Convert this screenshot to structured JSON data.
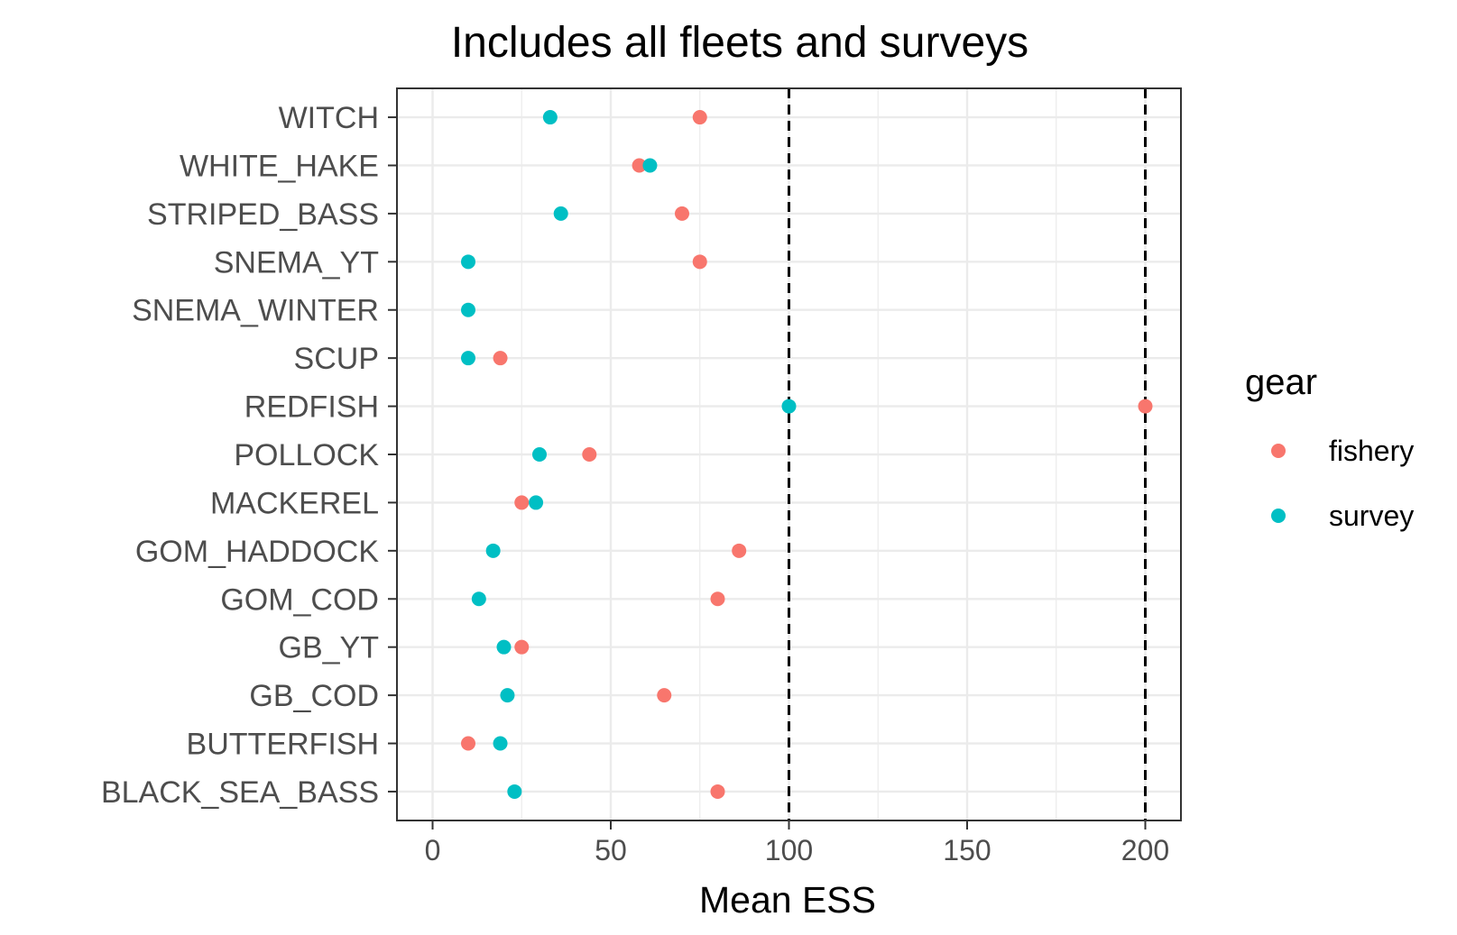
{
  "chart_data": {
    "type": "scatter",
    "title": "Includes all fleets and surveys",
    "xlabel": "Mean ESS",
    "ylabel": "",
    "xlim": [
      -10,
      210
    ],
    "x_ticks": [
      "0",
      "50",
      "100",
      "150",
      "200"
    ],
    "x_tick_values": [
      0,
      50,
      100,
      150,
      200
    ],
    "grid": true,
    "reference_lines": [
      100,
      200
    ],
    "legend": {
      "title": "gear",
      "position": "right"
    },
    "categories": [
      "WITCH",
      "WHITE_HAKE",
      "STRIPED_BASS",
      "SNEMA_YT",
      "SNEMA_WINTER",
      "SCUP",
      "REDFISH",
      "POLLOCK",
      "MACKEREL",
      "GOM_HADDOCK",
      "GOM_COD",
      "GB_YT",
      "GB_COD",
      "BUTTERFISH",
      "BLACK_SEA_BASS"
    ],
    "series": [
      {
        "name": "fishery",
        "color": "#f8766d",
        "values": [
          75,
          58,
          70,
          75,
          null,
          19,
          200,
          44,
          25,
          86,
          80,
          25,
          65,
          10,
          80
        ]
      },
      {
        "name": "survey",
        "color": "#00bfc4",
        "values": [
          33,
          61,
          36,
          10,
          10,
          10,
          100,
          30,
          29,
          17,
          13,
          20,
          21,
          19,
          23
        ]
      }
    ]
  }
}
